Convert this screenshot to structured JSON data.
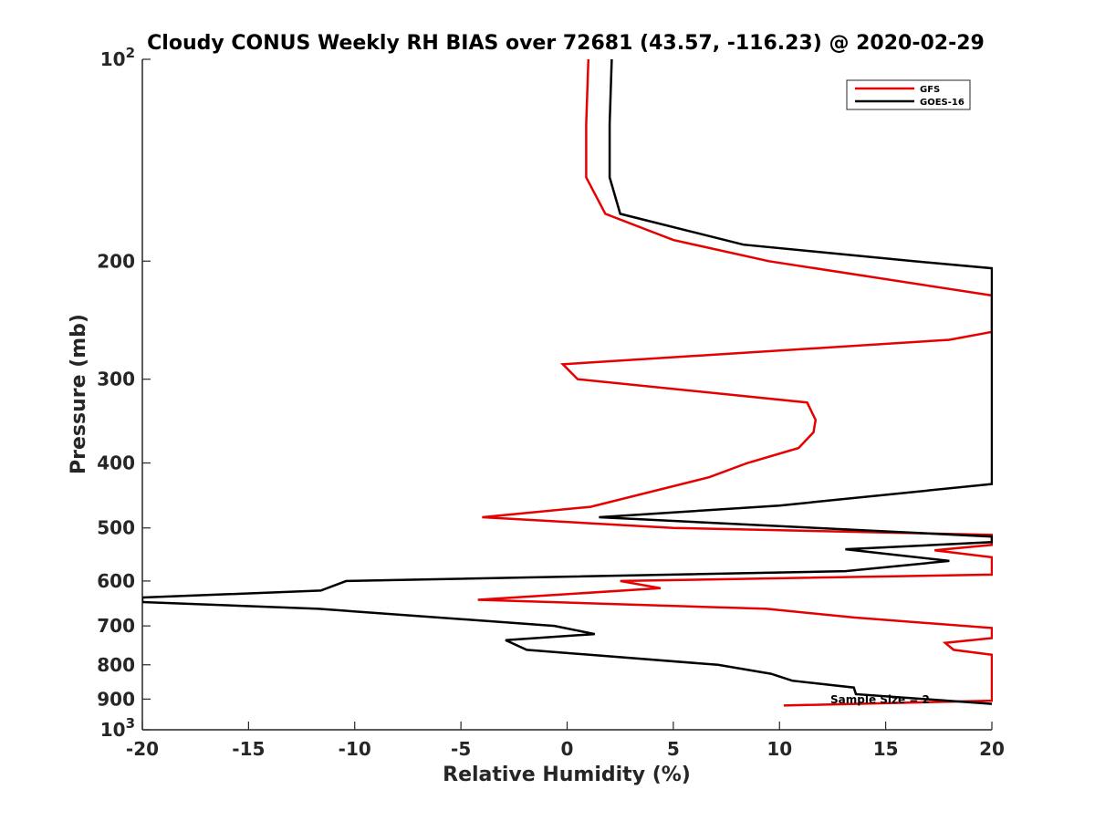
{
  "chart_data": {
    "type": "line",
    "title": "Cloudy CONUS Weekly RH BIAS over 72681 (43.57, -116.23) @ 2020-02-29",
    "xlabel": "Relative Humidity (%)",
    "ylabel": "Pressure (mb)",
    "xlim": [
      -20,
      20
    ],
    "ylim": [
      100,
      1000
    ],
    "y_scale": "log",
    "y_reversed": true,
    "x_ticks": [
      "-20",
      "-15",
      "-10",
      "-5",
      "0",
      "5",
      "10",
      "15",
      "20"
    ],
    "y_ticks": [
      {
        "value": 100,
        "base": "10",
        "exp": "2"
      },
      {
        "value": 200,
        "label": "200"
      },
      {
        "value": 300,
        "label": "300"
      },
      {
        "value": 400,
        "label": "400"
      },
      {
        "value": 500,
        "label": "500"
      },
      {
        "value": 600,
        "label": "600"
      },
      {
        "value": 700,
        "label": "700"
      },
      {
        "value": 800,
        "label": "800"
      },
      {
        "value": 900,
        "label": "900"
      },
      {
        "value": 1000,
        "base": "10",
        "exp": "3"
      }
    ],
    "grid": false,
    "legend_position": "top-right",
    "annotation": "Sample Size = 2",
    "series": [
      {
        "name": "GFS",
        "color": "#e60000",
        "points": [
          [
            1.0,
            100
          ],
          [
            0.9,
            125
          ],
          [
            0.9,
            150
          ],
          [
            1.8,
            170
          ],
          [
            5.0,
            186
          ],
          [
            9.5,
            200
          ],
          [
            20,
            225
          ],
          [
            20,
            250
          ],
          [
            20,
            255
          ],
          [
            18,
            262
          ],
          [
            -0.2,
            285
          ],
          [
            0.5,
            300
          ],
          [
            11.3,
            325
          ],
          [
            11.7,
            345
          ],
          [
            11.6,
            360
          ],
          [
            10.9,
            380
          ],
          [
            8.5,
            400
          ],
          [
            6.7,
            420
          ],
          [
            1.1,
            465
          ],
          [
            -4.0,
            482
          ],
          [
            5.0,
            500
          ],
          [
            20,
            512
          ],
          [
            20,
            530
          ],
          [
            17.3,
            540
          ],
          [
            20,
            553
          ],
          [
            20,
            587
          ],
          [
            2.5,
            600
          ],
          [
            4.4,
            615
          ],
          [
            -4.2,
            640
          ],
          [
            9.4,
            660
          ],
          [
            13.5,
            680
          ],
          [
            20,
            705
          ],
          [
            20,
            730
          ],
          [
            17.8,
            742
          ],
          [
            18.2,
            760
          ],
          [
            20,
            773
          ],
          [
            20,
            900
          ],
          [
            20,
            905
          ],
          [
            10.2,
            920
          ]
        ]
      },
      {
        "name": "GOES-16",
        "color": "#000000",
        "points": [
          [
            2.1,
            100
          ],
          [
            2.0,
            125
          ],
          [
            2.0,
            150
          ],
          [
            2.5,
            170
          ],
          [
            8.3,
            189
          ],
          [
            16.3,
            200
          ],
          [
            20,
            205
          ],
          [
            20,
            425
          ],
          [
            20,
            430
          ],
          [
            10.0,
            463
          ],
          [
            1.5,
            482
          ],
          [
            20,
            515
          ],
          [
            20,
            525
          ],
          [
            13.1,
            538
          ],
          [
            18.0,
            560
          ],
          [
            13.1,
            580
          ],
          [
            -10.4,
            600
          ],
          [
            -11.6,
            620
          ],
          [
            -20,
            635
          ],
          [
            -20,
            645
          ],
          [
            -11.7,
            660
          ],
          [
            -0.6,
            700
          ],
          [
            1.3,
            720
          ],
          [
            -2.9,
            735
          ],
          [
            -1.9,
            760
          ],
          [
            7.1,
            800
          ],
          [
            9.6,
            825
          ],
          [
            10.6,
            845
          ],
          [
            13.5,
            865
          ],
          [
            13.6,
            885
          ],
          [
            20,
            915
          ]
        ]
      }
    ]
  }
}
